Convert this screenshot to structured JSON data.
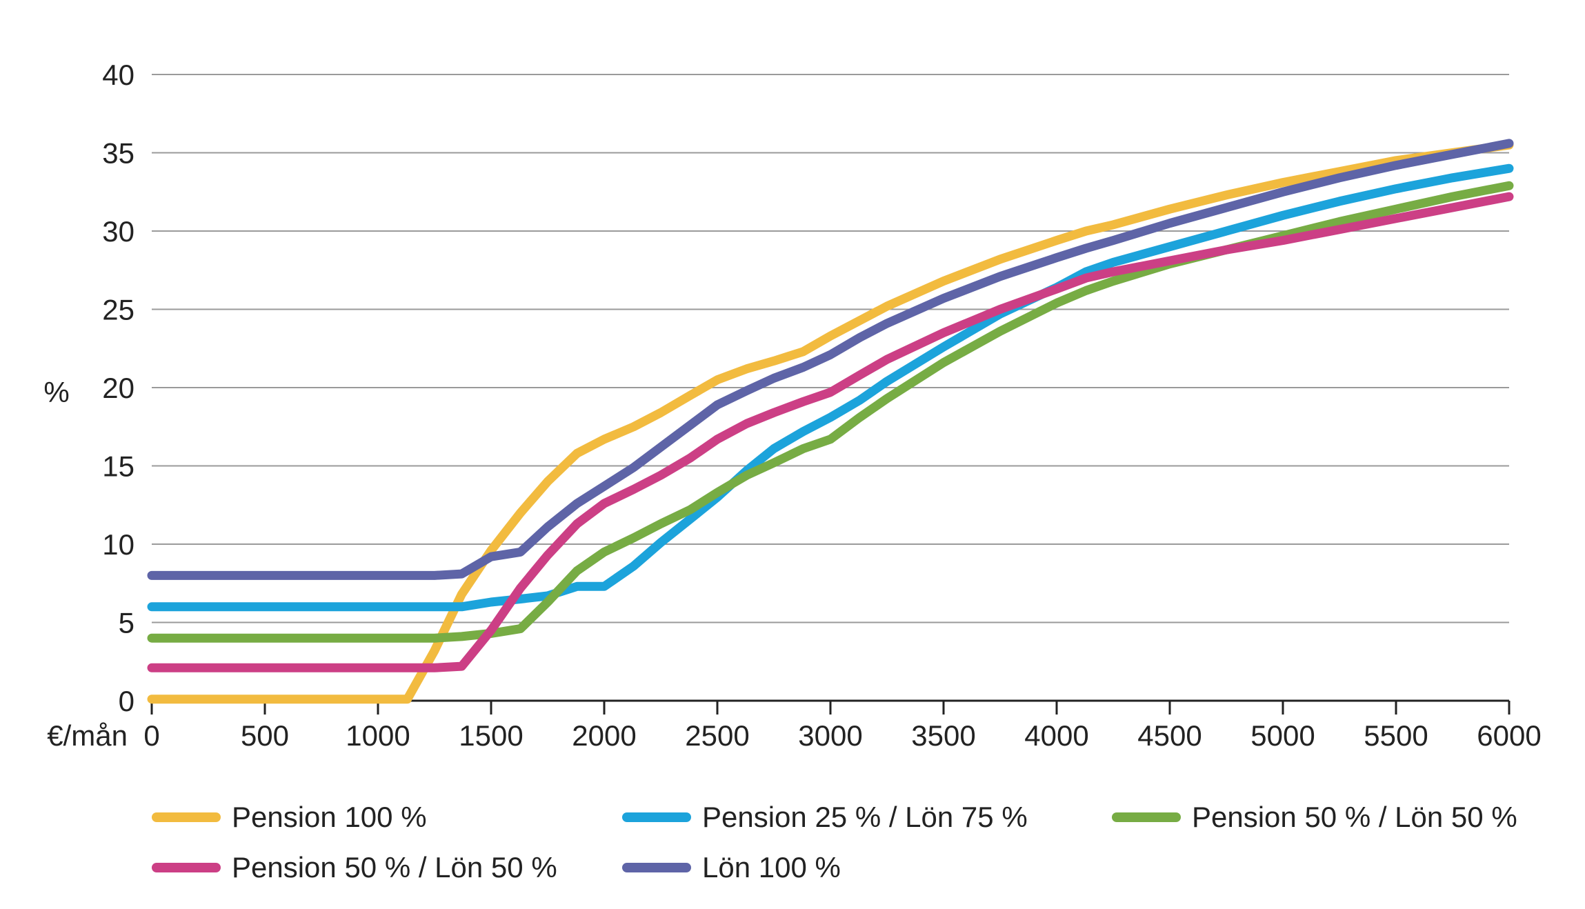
{
  "chart_data": {
    "type": "line",
    "title": "",
    "xlabel": "€/mån",
    "ylabel": "%",
    "xlim": [
      0,
      6000
    ],
    "ylim": [
      0,
      40
    ],
    "grid": true,
    "legend_position": "bottom",
    "x_ticks": [
      "0",
      "500",
      "1000",
      "1500",
      "2000",
      "2500",
      "3000",
      "3500",
      "4000",
      "4500",
      "5000",
      "5500",
      "6000"
    ],
    "y_ticks": [
      "0",
      "5",
      "10",
      "15",
      "20",
      "25",
      "30",
      "35",
      "40"
    ],
    "series": [
      {
        "name": "Pension 100 %",
        "color": "#f2bb3f",
        "x": [
          0,
          1130,
          1250,
          1370,
          1500,
          1630,
          1750,
          1880,
          2000,
          2130,
          2250,
          2380,
          2500,
          2630,
          2750,
          2880,
          3000,
          3250,
          3500,
          3750,
          4000,
          4130,
          4250,
          4500,
          4750,
          5000,
          5250,
          5500,
          5750,
          6000
        ],
        "values": [
          0.1,
          0.1,
          3.2,
          6.8,
          9.6,
          12.0,
          14.0,
          15.8,
          16.7,
          17.5,
          18.4,
          19.5,
          20.5,
          21.2,
          21.7,
          22.3,
          23.3,
          25.2,
          26.8,
          28.2,
          29.4,
          30.0,
          30.4,
          31.4,
          32.3,
          33.1,
          33.8,
          34.5,
          35.0,
          35.5
        ]
      },
      {
        "name": "Pension 25 % / Lön 75 %",
        "color": "#1ca3db",
        "x": [
          0,
          1250,
          1370,
          1500,
          1630,
          1750,
          1880,
          2000,
          2130,
          2250,
          2380,
          2500,
          2630,
          2750,
          2880,
          3000,
          3130,
          3250,
          3500,
          3750,
          4000,
          4130,
          4250,
          4500,
          4750,
          5000,
          5250,
          5500,
          5750,
          6000
        ],
        "values": [
          6.0,
          6.0,
          6.0,
          6.3,
          6.5,
          6.7,
          7.3,
          7.3,
          8.6,
          10.1,
          11.6,
          13.0,
          14.7,
          16.1,
          17.2,
          18.1,
          19.2,
          20.4,
          22.6,
          24.7,
          26.4,
          27.4,
          28.0,
          29.0,
          30.0,
          31.0,
          31.9,
          32.7,
          33.4,
          34.0
        ]
      },
      {
        "name": "Pension 50 % / Lön 50 %",
        "color": "#77ac44",
        "x": [
          0,
          1250,
          1370,
          1500,
          1630,
          1750,
          1880,
          2000,
          2130,
          2250,
          2380,
          2500,
          2630,
          2750,
          2880,
          3000,
          3130,
          3250,
          3500,
          3750,
          4000,
          4130,
          4250,
          4500,
          4750,
          5000,
          5250,
          5500,
          5750,
          6000
        ],
        "values": [
          4.0,
          4.0,
          4.1,
          4.3,
          4.6,
          6.3,
          8.3,
          9.5,
          10.4,
          11.3,
          12.2,
          13.3,
          14.4,
          15.2,
          16.1,
          16.7,
          18.1,
          19.3,
          21.6,
          23.6,
          25.4,
          26.2,
          26.8,
          27.9,
          28.8,
          29.7,
          30.6,
          31.4,
          32.2,
          32.9
        ]
      },
      {
        "name": "Pension 50 % / Lön 50 %",
        "color": "#cc3f85",
        "x": [
          0,
          1250,
          1370,
          1500,
          1630,
          1750,
          1880,
          2000,
          2130,
          2250,
          2380,
          2500,
          2630,
          2750,
          2880,
          3000,
          3130,
          3250,
          3500,
          3750,
          4000,
          4130,
          4250,
          4500,
          4750,
          5000,
          5250,
          5500,
          5750,
          6000
        ],
        "values": [
          2.1,
          2.1,
          2.2,
          4.5,
          7.2,
          9.3,
          11.3,
          12.6,
          13.5,
          14.4,
          15.5,
          16.7,
          17.7,
          18.4,
          19.1,
          19.7,
          20.8,
          21.8,
          23.5,
          25.0,
          26.3,
          27.0,
          27.4,
          28.1,
          28.8,
          29.4,
          30.1,
          30.8,
          31.5,
          32.2
        ]
      },
      {
        "name": "Lön 100 %",
        "color": "#5e64a7",
        "x": [
          0,
          1250,
          1370,
          1500,
          1630,
          1750,
          1880,
          2000,
          2130,
          2250,
          2380,
          2500,
          2630,
          2750,
          2880,
          3000,
          3130,
          3250,
          3500,
          3750,
          4000,
          4130,
          4250,
          4500,
          4750,
          5000,
          5250,
          5500,
          5750,
          6000
        ],
        "values": [
          8.0,
          8.0,
          8.1,
          9.2,
          9.5,
          11.1,
          12.6,
          13.7,
          14.9,
          16.2,
          17.6,
          18.9,
          19.8,
          20.6,
          21.3,
          22.1,
          23.2,
          24.1,
          25.7,
          27.1,
          28.3,
          28.9,
          29.4,
          30.5,
          31.5,
          32.5,
          33.4,
          34.2,
          34.9,
          35.6
        ]
      }
    ]
  }
}
